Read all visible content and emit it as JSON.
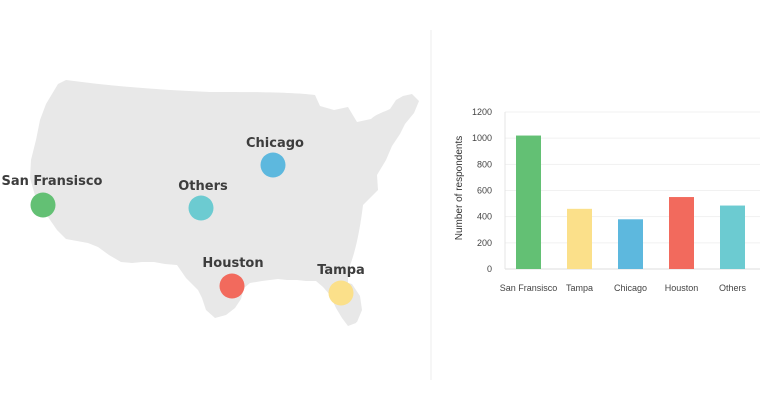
{
  "map": {
    "markers": [
      {
        "label": "San Fransisco",
        "color": "#63c074"
      },
      {
        "label": "Others",
        "color": "#6ccbd1"
      },
      {
        "label": "Chicago",
        "color": "#5db8de"
      },
      {
        "label": "Houston",
        "color": "#f26a5d"
      },
      {
        "label": "Tampa",
        "color": "#fbe08a"
      }
    ]
  },
  "chart_data": {
    "type": "bar",
    "categories": [
      "San Fransisco",
      "Tampa",
      "Chicago",
      "Houston",
      "Others"
    ],
    "values": [
      1020,
      460,
      380,
      550,
      485
    ],
    "colors": [
      "#63c074",
      "#fbe08a",
      "#5db8de",
      "#f26a5d",
      "#6ccbd1"
    ],
    "ylabel": "Number of respondents",
    "xlabel": "",
    "ylim": [
      0,
      1200
    ],
    "yticks": [
      0,
      200,
      400,
      600,
      800,
      1000,
      1200
    ],
    "grid": true
  }
}
